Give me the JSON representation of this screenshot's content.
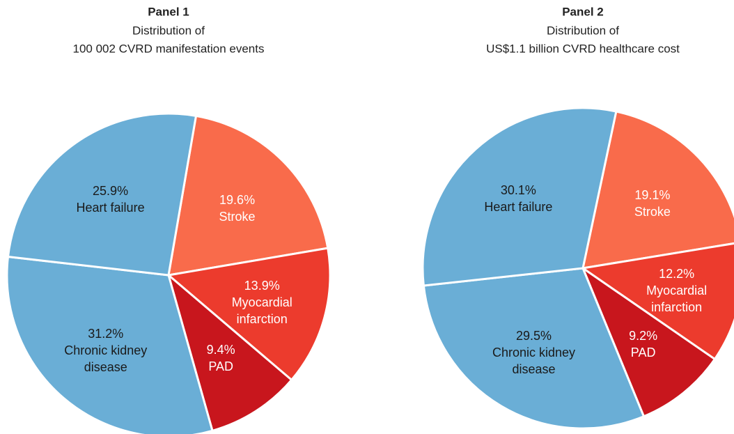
{
  "chart_data": [
    {
      "type": "pie",
      "title": "Panel 1",
      "subtitle": [
        "Distribution of",
        "100 002 CVRD manifestation events"
      ],
      "categories": [
        "Stroke",
        "Myocardial infarction",
        "PAD",
        "Chronic kidney disease",
        "Heart failure"
      ],
      "values": [
        19.6,
        13.9,
        9.4,
        31.2,
        25.9
      ],
      "value_labels": [
        "19.6%",
        "13.9%",
        "9.4%",
        "31.2%",
        "25.9%"
      ],
      "colors": [
        "#f96b4b",
        "#ec3b2d",
        "#c8161d",
        "#6aaed6",
        "#6aaed6"
      ]
    },
    {
      "type": "pie",
      "title": "Panel 2",
      "subtitle": [
        "Distribution of",
        "US$1.1 billion CVRD healthcare cost"
      ],
      "categories": [
        "Stroke",
        "Myocardial infarction",
        "PAD",
        "Chronic kidney disease",
        "Heart failure"
      ],
      "values": [
        19.1,
        12.2,
        9.2,
        29.5,
        30.1
      ],
      "value_labels": [
        "19.1%",
        "12.2%",
        "9.2%",
        "29.5%",
        "30.1%"
      ],
      "colors": [
        "#f96b4b",
        "#ec3b2d",
        "#c8161d",
        "#6aaed6",
        "#6aaed6"
      ]
    }
  ]
}
